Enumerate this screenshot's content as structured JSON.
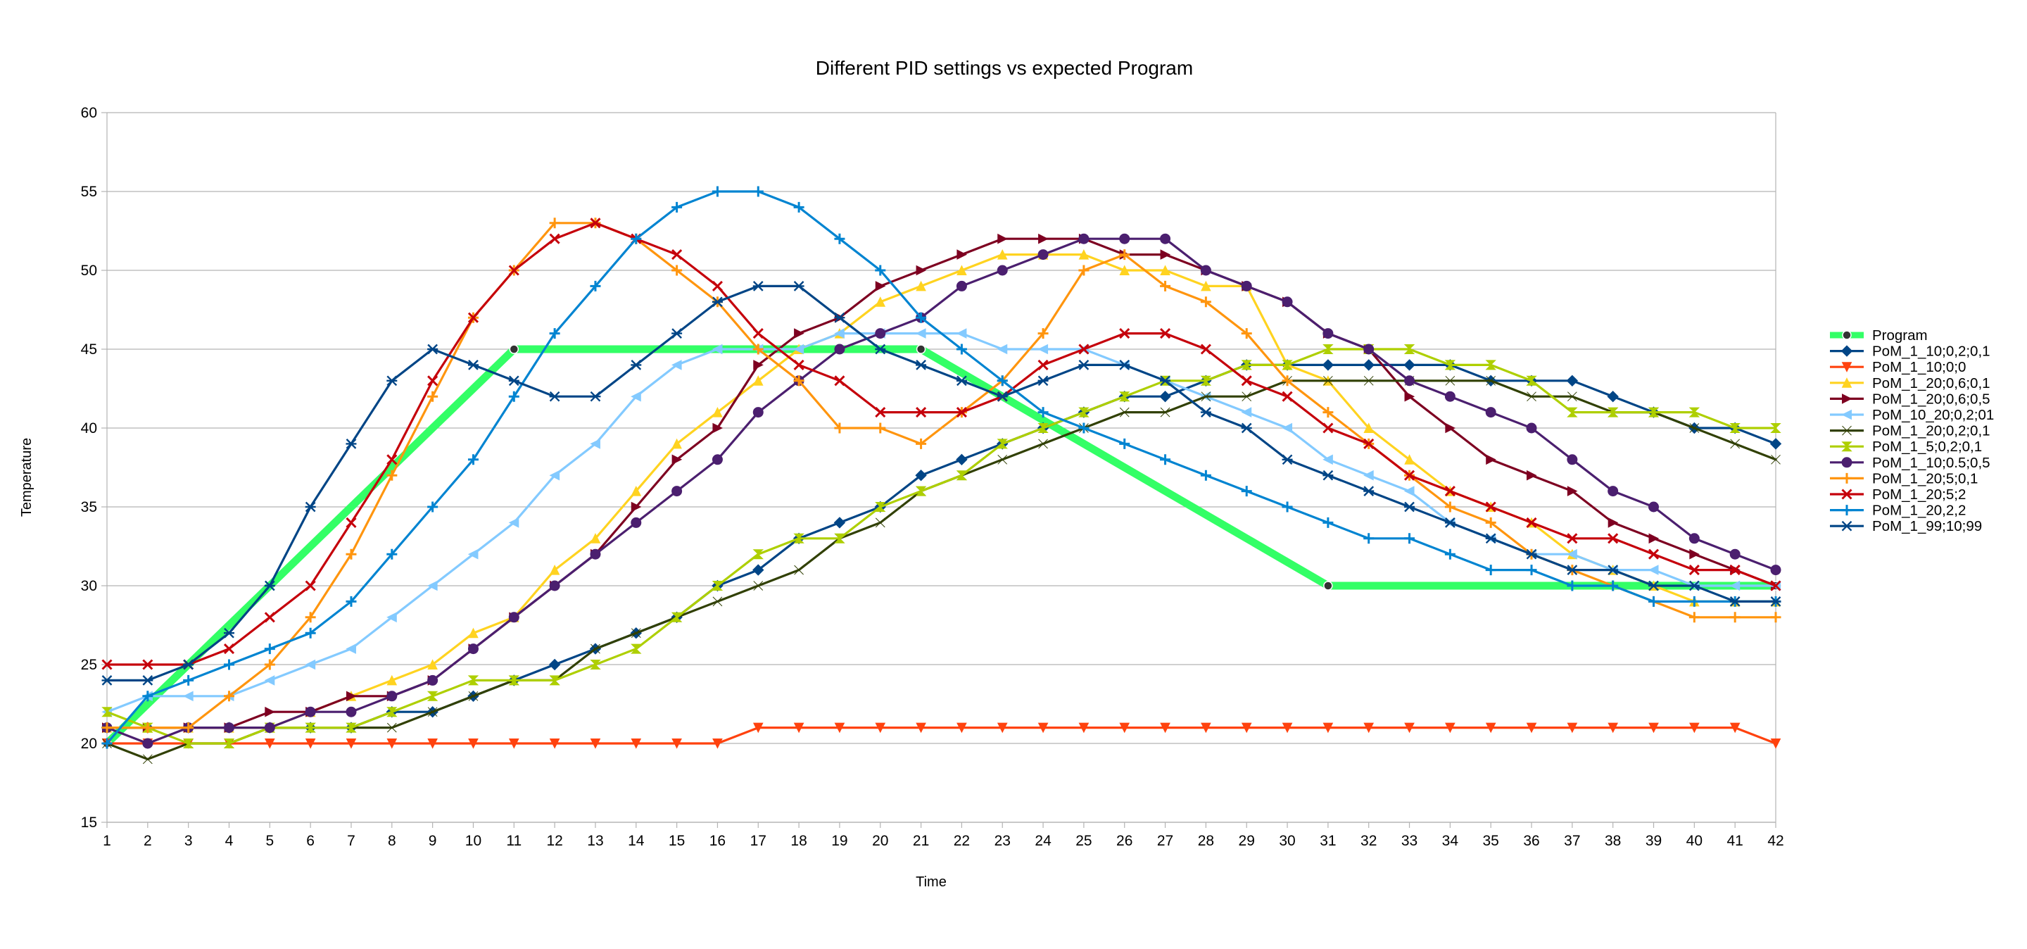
{
  "chart_data": {
    "type": "line",
    "title": "Different PID settings vs expected Program",
    "xlabel": "Time",
    "ylabel": "Temperature",
    "categories": [
      "1",
      "2",
      "3",
      "4",
      "5",
      "6",
      "7",
      "8",
      "9",
      "10",
      "11",
      "12",
      "13",
      "14",
      "15",
      "16",
      "17",
      "18",
      "19",
      "20",
      "21",
      "22",
      "23",
      "24",
      "25",
      "26",
      "27",
      "28",
      "29",
      "30",
      "31",
      "32",
      "33",
      "34",
      "35",
      "36",
      "37",
      "38",
      "39",
      "40",
      "41",
      "42"
    ],
    "ylim": [
      15,
      60
    ],
    "yticks": [
      "15",
      "20",
      "25",
      "30",
      "35",
      "40",
      "45",
      "50",
      "55",
      "60"
    ],
    "grid": "horizontal",
    "legend_position": "right",
    "series": [
      {
        "name": "Program",
        "color": "#33ff66",
        "marker": "dot",
        "width": 11,
        "values": [
          20,
          null,
          null,
          null,
          null,
          null,
          null,
          null,
          null,
          null,
          45,
          null,
          null,
          null,
          null,
          null,
          null,
          null,
          null,
          null,
          45,
          null,
          null,
          null,
          null,
          null,
          null,
          null,
          null,
          null,
          30,
          null,
          null,
          null,
          null,
          null,
          null,
          null,
          null,
          null,
          null,
          30
        ]
      },
      {
        "name": "PoM_1_10;0,2;0,1",
        "color": "#004586",
        "marker": "diamond",
        "values": [
          21,
          21,
          21,
          21,
          21,
          21,
          21,
          22,
          22,
          23,
          24,
          25,
          26,
          27,
          28,
          30,
          31,
          33,
          34,
          35,
          37,
          38,
          39,
          40,
          41,
          42,
          42,
          43,
          44,
          44,
          44,
          44,
          44,
          44,
          43,
          43,
          43,
          42,
          41,
          40,
          40,
          39
        ]
      },
      {
        "name": "PoM_1_10;0;0",
        "color": "#ff420e",
        "marker": "tri-down",
        "values": [
          20,
          20,
          20,
          20,
          20,
          20,
          20,
          20,
          20,
          20,
          20,
          20,
          20,
          20,
          20,
          20,
          21,
          21,
          21,
          21,
          21,
          21,
          21,
          21,
          21,
          21,
          21,
          21,
          21,
          21,
          21,
          21,
          21,
          21,
          21,
          21,
          21,
          21,
          21,
          21,
          21,
          20
        ]
      },
      {
        "name": "PoM_1_20;0,6;0,1",
        "color": "#ffd320",
        "marker": "tri-up",
        "values": [
          21,
          21,
          21,
          21,
          21,
          22,
          23,
          24,
          25,
          27,
          28,
          31,
          33,
          36,
          39,
          41,
          43,
          45,
          46,
          48,
          49,
          50,
          51,
          51,
          51,
          50,
          50,
          49,
          49,
          44,
          43,
          40,
          38,
          36,
          35,
          34,
          32,
          31,
          30,
          29,
          29,
          29
        ]
      },
      {
        "name": "PoM_1_20;0,6;0,5",
        "color": "#7e0021",
        "marker": "tri-right",
        "values": [
          21,
          21,
          21,
          21,
          22,
          22,
          23,
          23,
          24,
          26,
          28,
          30,
          32,
          35,
          38,
          40,
          44,
          46,
          47,
          49,
          50,
          51,
          52,
          52,
          52,
          51,
          51,
          50,
          49,
          48,
          46,
          45,
          42,
          40,
          38,
          37,
          36,
          34,
          33,
          32,
          31,
          30
        ]
      },
      {
        "name": "PoM_10_20;0,2;01",
        "color": "#83caff",
        "marker": "tri-left",
        "values": [
          22,
          23,
          23,
          23,
          24,
          25,
          26,
          28,
          30,
          32,
          34,
          37,
          39,
          42,
          44,
          45,
          45,
          45,
          46,
          46,
          46,
          46,
          45,
          45,
          45,
          44,
          43,
          42,
          41,
          40,
          38,
          37,
          36,
          34,
          33,
          32,
          32,
          31,
          31,
          30,
          30,
          30
        ]
      },
      {
        "name": "PoM_1_20;0,2;0,1",
        "color": "#314004",
        "marker": "bowtie",
        "values": [
          20,
          19,
          20,
          20,
          21,
          21,
          21,
          21,
          22,
          23,
          24,
          24,
          26,
          27,
          28,
          29,
          30,
          31,
          33,
          34,
          36,
          37,
          38,
          39,
          40,
          41,
          41,
          42,
          42,
          43,
          43,
          43,
          43,
          43,
          43,
          42,
          42,
          41,
          41,
          40,
          39,
          38
        ]
      },
      {
        "name": "PoM_1_5;0,2;0,1",
        "color": "#aecf00",
        "marker": "hourglass",
        "values": [
          22,
          21,
          20,
          20,
          21,
          21,
          21,
          22,
          23,
          24,
          24,
          24,
          25,
          26,
          28,
          30,
          32,
          33,
          33,
          35,
          36,
          37,
          39,
          40,
          41,
          42,
          43,
          43,
          44,
          44,
          45,
          45,
          45,
          44,
          44,
          43,
          41,
          41,
          41,
          41,
          40,
          40
        ]
      },
      {
        "name": "PoM_1_10;0.5;0,5",
        "color": "#4b1f6f",
        "marker": "circle",
        "values": [
          21,
          20,
          21,
          21,
          21,
          22,
          22,
          23,
          24,
          26,
          28,
          30,
          32,
          34,
          36,
          38,
          41,
          43,
          45,
          46,
          47,
          49,
          50,
          51,
          52,
          52,
          52,
          50,
          49,
          48,
          46,
          45,
          43,
          42,
          41,
          40,
          38,
          36,
          35,
          33,
          32,
          31
        ]
      },
      {
        "name": "PoM_1_20;5;0,1",
        "color": "#ff950e",
        "marker": "plus",
        "values": [
          21,
          21,
          21,
          23,
          25,
          28,
          32,
          37,
          42,
          47,
          50,
          53,
          53,
          52,
          50,
          48,
          45,
          43,
          40,
          40,
          39,
          41,
          43,
          46,
          50,
          51,
          49,
          48,
          46,
          43,
          41,
          39,
          37,
          35,
          34,
          32,
          31,
          30,
          29,
          28,
          28,
          28
        ]
      },
      {
        "name": "PoM_1_20;5;2",
        "color": "#c5000b",
        "marker": "cross",
        "values": [
          25,
          25,
          25,
          26,
          28,
          30,
          34,
          38,
          43,
          47,
          50,
          52,
          53,
          52,
          51,
          49,
          46,
          44,
          43,
          41,
          41,
          41,
          42,
          44,
          45,
          46,
          46,
          45,
          43,
          42,
          40,
          39,
          37,
          36,
          35,
          34,
          33,
          33,
          32,
          31,
          31,
          30
        ]
      },
      {
        "name": "PoM_1_20,2,2",
        "color": "#0084d1",
        "marker": "plus",
        "values": [
          20,
          23,
          24,
          25,
          26,
          27,
          29,
          32,
          35,
          38,
          42,
          46,
          49,
          52,
          54,
          55,
          55,
          54,
          52,
          50,
          47,
          45,
          43,
          41,
          40,
          39,
          38,
          37,
          36,
          35,
          34,
          33,
          33,
          32,
          31,
          31,
          30,
          30,
          29,
          29,
          29,
          29
        ]
      },
      {
        "name": "PoM_1_99;10;99",
        "color": "#004586",
        "marker": "star",
        "values": [
          24,
          24,
          25,
          27,
          30,
          35,
          39,
          43,
          45,
          44,
          43,
          42,
          42,
          44,
          46,
          48,
          49,
          49,
          47,
          45,
          44,
          43,
          42,
          43,
          44,
          44,
          43,
          41,
          40,
          38,
          37,
          36,
          35,
          34,
          33,
          32,
          31,
          31,
          30,
          30,
          29,
          29
        ]
      }
    ]
  }
}
